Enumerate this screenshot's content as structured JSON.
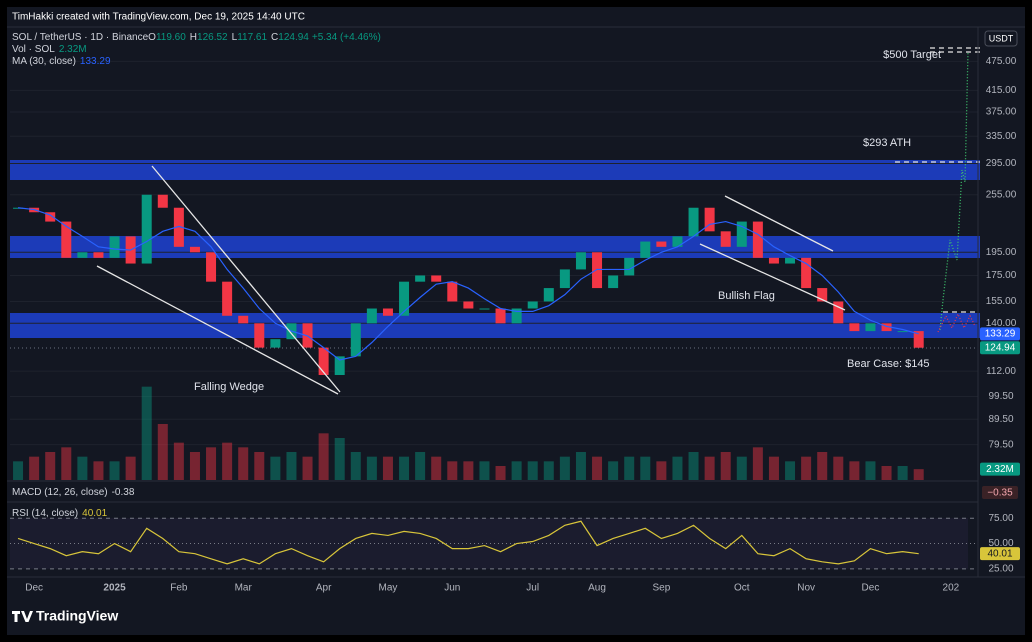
{
  "header": {
    "credit": "TimHakki created with TradingView.com, Dec 19, 2025 14:40 UTC",
    "symbol": "SOL / TetherUS · 1D · Binance",
    "ohlc": [
      {
        "label": "O",
        "value": "119.60"
      },
      {
        "label": "H",
        "value": "126.52"
      },
      {
        "label": "L",
        "value": "117.61"
      },
      {
        "label": "C",
        "value": "124.94"
      }
    ],
    "change": "+5.34 (+4.46%)",
    "volume_label": "Vol · SOL",
    "volume_value": "2.32M",
    "ma_label": "MA (30, close)",
    "currency": "USDT"
  },
  "chart_data": {
    "type": "candlestick",
    "log": true,
    "grid": true,
    "categories": [
      null,
      "Dec",
      null,
      null,
      null,
      null,
      "2025",
      null,
      null,
      null,
      "Feb",
      null,
      null,
      null,
      "Mar",
      null,
      null,
      null,
      null,
      "Apr",
      null,
      null,
      null,
      "May",
      null,
      null,
      null,
      "Jun",
      null,
      null,
      null,
      null,
      "Jul",
      null,
      null,
      null,
      "Aug",
      null,
      null,
      null,
      "Sep",
      null,
      null,
      null,
      null,
      "Oct",
      null,
      null,
      null,
      "Nov",
      null,
      null,
      null,
      "Dec",
      null,
      null,
      null,
      null,
      "202",
      null
    ],
    "close": [
      240,
      235,
      225,
      190,
      195,
      190,
      210,
      185,
      255,
      240,
      200,
      195,
      170,
      145,
      140,
      125,
      130,
      140,
      125,
      110,
      120,
      140,
      150,
      145,
      170,
      175,
      170,
      155,
      150,
      150,
      140,
      150,
      155,
      165,
      180,
      195,
      165,
      175,
      190,
      205,
      200,
      210,
      240,
      215,
      200,
      225,
      190,
      185,
      190,
      165,
      155,
      140,
      135,
      140,
      135,
      135,
      124.94,
      null,
      null,
      null
    ],
    "ma": [
      240,
      238,
      232,
      220,
      210,
      200,
      198,
      197,
      205,
      215,
      220,
      215,
      200,
      180,
      165,
      150,
      140,
      135,
      132,
      125,
      118,
      120,
      128,
      138,
      148,
      158,
      168,
      170,
      165,
      157,
      150,
      148,
      148,
      152,
      160,
      172,
      180,
      180,
      180,
      188,
      195,
      200,
      210,
      222,
      225,
      220,
      212,
      200,
      192,
      185,
      175,
      162,
      148,
      142,
      138,
      136,
      133.29,
      null,
      null,
      null
    ],
    "volume": [
      4,
      5,
      6,
      7,
      5,
      4,
      4,
      5,
      20,
      12,
      8,
      6,
      7,
      8,
      7,
      6,
      5,
      6,
      5,
      10,
      9,
      6,
      5,
      5,
      5,
      6,
      5,
      4,
      4,
      4,
      3,
      4,
      4,
      4,
      5,
      6,
      5,
      4,
      5,
      5,
      4,
      5,
      6,
      5,
      6,
      5,
      7,
      5,
      4,
      5,
      6,
      5,
      4,
      4,
      3,
      3,
      2.32,
      null,
      null,
      null
    ],
    "rsi": [
      55,
      50,
      45,
      38,
      42,
      40,
      50,
      42,
      65,
      55,
      42,
      40,
      35,
      30,
      35,
      30,
      40,
      45,
      38,
      32,
      45,
      55,
      60,
      58,
      62,
      60,
      55,
      45,
      45,
      48,
      42,
      50,
      52,
      58,
      68,
      72,
      48,
      55,
      60,
      65,
      55,
      60,
      68,
      55,
      45,
      58,
      40,
      38,
      45,
      35,
      32,
      30,
      33,
      45,
      40,
      42,
      40.01,
      null,
      null,
      null
    ],
    "ylim": [
      74,
      555
    ],
    "yticks": [
      {
        "value": 475,
        "label": "475.00"
      },
      {
        "value": 415,
        "label": "415.00"
      },
      {
        "value": 375,
        "label": "375.00"
      },
      {
        "value": 335,
        "label": "335.00"
      },
      {
        "value": 295,
        "label": "295.00"
      },
      {
        "value": 255,
        "label": "255.00"
      },
      {
        "value": 195,
        "label": "195.00"
      },
      {
        "value": 175,
        "label": "175.00"
      },
      {
        "value": 155,
        "label": "155.00"
      },
      {
        "value": 140,
        "label": "140.00"
      },
      {
        "value": 112,
        "label": "112.00"
      },
      {
        "value": 99.5,
        "label": "99.50"
      },
      {
        "value": 89.5,
        "label": "89.50"
      },
      {
        "value": 79.5,
        "label": "79.50"
      }
    ],
    "volume_ylim": [
      0,
      24
    ],
    "rsi_ylim": [
      19,
      88
    ],
    "rsi_yticks": [
      {
        "value": 75,
        "label": "75.00"
      },
      {
        "value": 50,
        "label": "50.00"
      },
      {
        "value": 25,
        "label": "25.00"
      }
    ],
    "up_color": "#089981",
    "down_color": "#f23645",
    "ma_color": "#2962ff",
    "rsi_color": "#d8c53a",
    "macd": {
      "label": "MACD (12, 26, close)",
      "value": "-0.38",
      "last": "−0.35"
    },
    "rsi_label": "RSI (14, close)"
  },
  "annotations": {
    "target": "$500 Target",
    "ath": "$293 ATH",
    "flag": "Bullish Flag",
    "wedge": "Falling Wedge",
    "bear": "Bear Case: $145"
  },
  "footer": {
    "brand": "TradingView"
  }
}
